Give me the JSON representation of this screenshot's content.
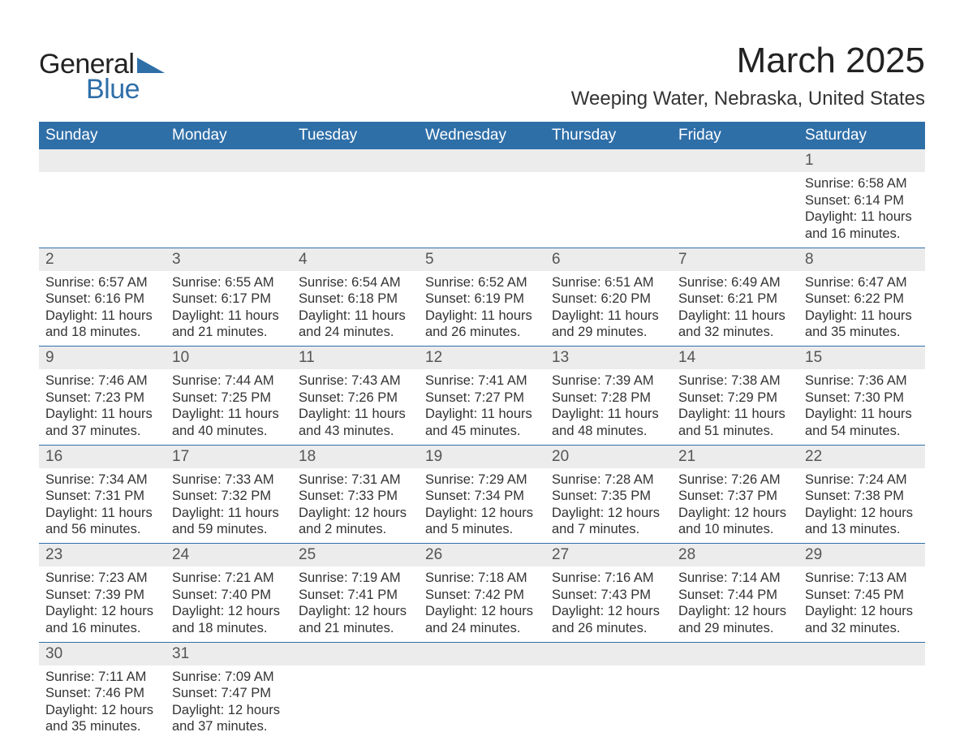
{
  "logo": {
    "text1": "General",
    "text2": "Blue",
    "shape_color": "#2f6fa8"
  },
  "title": "March 2025",
  "location": "Weeping Water, Nebraska, United States",
  "colors": {
    "header_bg": "#2f6fa8",
    "header_fg": "#ffffff",
    "daynum_bg": "#ececec",
    "text": "#333333",
    "rule": "#2f6fa8",
    "page_bg": "#ffffff"
  },
  "typography": {
    "title_fontsize": 44,
    "location_fontsize": 24,
    "header_fontsize": 19,
    "daynum_fontsize": 19,
    "detail_fontsize": 16.5
  },
  "day_headers": [
    "Sunday",
    "Monday",
    "Tuesday",
    "Wednesday",
    "Thursday",
    "Friday",
    "Saturday"
  ],
  "weeks": [
    [
      null,
      null,
      null,
      null,
      null,
      null,
      {
        "n": "1",
        "sunrise": "6:58 AM",
        "sunset": "6:14 PM",
        "daylight": "11 hours and 16 minutes."
      }
    ],
    [
      {
        "n": "2",
        "sunrise": "6:57 AM",
        "sunset": "6:16 PM",
        "daylight": "11 hours and 18 minutes."
      },
      {
        "n": "3",
        "sunrise": "6:55 AM",
        "sunset": "6:17 PM",
        "daylight": "11 hours and 21 minutes."
      },
      {
        "n": "4",
        "sunrise": "6:54 AM",
        "sunset": "6:18 PM",
        "daylight": "11 hours and 24 minutes."
      },
      {
        "n": "5",
        "sunrise": "6:52 AM",
        "sunset": "6:19 PM",
        "daylight": "11 hours and 26 minutes."
      },
      {
        "n": "6",
        "sunrise": "6:51 AM",
        "sunset": "6:20 PM",
        "daylight": "11 hours and 29 minutes."
      },
      {
        "n": "7",
        "sunrise": "6:49 AM",
        "sunset": "6:21 PM",
        "daylight": "11 hours and 32 minutes."
      },
      {
        "n": "8",
        "sunrise": "6:47 AM",
        "sunset": "6:22 PM",
        "daylight": "11 hours and 35 minutes."
      }
    ],
    [
      {
        "n": "9",
        "sunrise": "7:46 AM",
        "sunset": "7:23 PM",
        "daylight": "11 hours and 37 minutes."
      },
      {
        "n": "10",
        "sunrise": "7:44 AM",
        "sunset": "7:25 PM",
        "daylight": "11 hours and 40 minutes."
      },
      {
        "n": "11",
        "sunrise": "7:43 AM",
        "sunset": "7:26 PM",
        "daylight": "11 hours and 43 minutes."
      },
      {
        "n": "12",
        "sunrise": "7:41 AM",
        "sunset": "7:27 PM",
        "daylight": "11 hours and 45 minutes."
      },
      {
        "n": "13",
        "sunrise": "7:39 AM",
        "sunset": "7:28 PM",
        "daylight": "11 hours and 48 minutes."
      },
      {
        "n": "14",
        "sunrise": "7:38 AM",
        "sunset": "7:29 PM",
        "daylight": "11 hours and 51 minutes."
      },
      {
        "n": "15",
        "sunrise": "7:36 AM",
        "sunset": "7:30 PM",
        "daylight": "11 hours and 54 minutes."
      }
    ],
    [
      {
        "n": "16",
        "sunrise": "7:34 AM",
        "sunset": "7:31 PM",
        "daylight": "11 hours and 56 minutes."
      },
      {
        "n": "17",
        "sunrise": "7:33 AM",
        "sunset": "7:32 PM",
        "daylight": "11 hours and 59 minutes."
      },
      {
        "n": "18",
        "sunrise": "7:31 AM",
        "sunset": "7:33 PM",
        "daylight": "12 hours and 2 minutes."
      },
      {
        "n": "19",
        "sunrise": "7:29 AM",
        "sunset": "7:34 PM",
        "daylight": "12 hours and 5 minutes."
      },
      {
        "n": "20",
        "sunrise": "7:28 AM",
        "sunset": "7:35 PM",
        "daylight": "12 hours and 7 minutes."
      },
      {
        "n": "21",
        "sunrise": "7:26 AM",
        "sunset": "7:37 PM",
        "daylight": "12 hours and 10 minutes."
      },
      {
        "n": "22",
        "sunrise": "7:24 AM",
        "sunset": "7:38 PM",
        "daylight": "12 hours and 13 minutes."
      }
    ],
    [
      {
        "n": "23",
        "sunrise": "7:23 AM",
        "sunset": "7:39 PM",
        "daylight": "12 hours and 16 minutes."
      },
      {
        "n": "24",
        "sunrise": "7:21 AM",
        "sunset": "7:40 PM",
        "daylight": "12 hours and 18 minutes."
      },
      {
        "n": "25",
        "sunrise": "7:19 AM",
        "sunset": "7:41 PM",
        "daylight": "12 hours and 21 minutes."
      },
      {
        "n": "26",
        "sunrise": "7:18 AM",
        "sunset": "7:42 PM",
        "daylight": "12 hours and 24 minutes."
      },
      {
        "n": "27",
        "sunrise": "7:16 AM",
        "sunset": "7:43 PM",
        "daylight": "12 hours and 26 minutes."
      },
      {
        "n": "28",
        "sunrise": "7:14 AM",
        "sunset": "7:44 PM",
        "daylight": "12 hours and 29 minutes."
      },
      {
        "n": "29",
        "sunrise": "7:13 AM",
        "sunset": "7:45 PM",
        "daylight": "12 hours and 32 minutes."
      }
    ],
    [
      {
        "n": "30",
        "sunrise": "7:11 AM",
        "sunset": "7:46 PM",
        "daylight": "12 hours and 35 minutes."
      },
      {
        "n": "31",
        "sunrise": "7:09 AM",
        "sunset": "7:47 PM",
        "daylight": "12 hours and 37 minutes."
      },
      null,
      null,
      null,
      null,
      null
    ]
  ],
  "labels": {
    "sunrise": "Sunrise:",
    "sunset": "Sunset:",
    "daylight": "Daylight:"
  }
}
